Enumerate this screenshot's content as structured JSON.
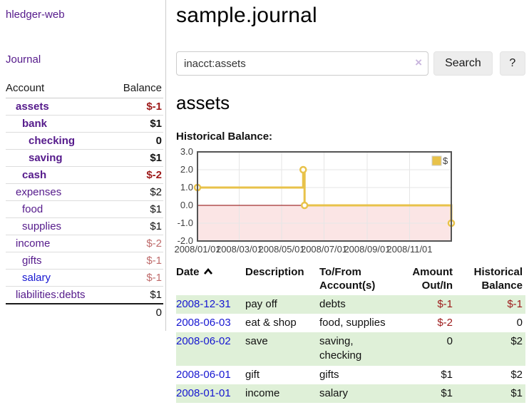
{
  "app": {
    "brand": "hledger-web",
    "nav_journal": "Journal"
  },
  "sidebar": {
    "columns": {
      "account": "Account",
      "balance": "Balance"
    },
    "accounts": [
      {
        "name": "assets",
        "balance": "$-1",
        "level": 1,
        "bold": true,
        "name_class": "",
        "balance_class": "neg-strong"
      },
      {
        "name": "bank",
        "balance": "$1",
        "level": 2,
        "bold": true,
        "name_class": "",
        "balance_class": ""
      },
      {
        "name": "checking",
        "balance": "0",
        "level": 3,
        "bold": true,
        "name_class": "",
        "balance_class": ""
      },
      {
        "name": "saving",
        "balance": "$1",
        "level": 3,
        "bold": true,
        "name_class": "",
        "balance_class": ""
      },
      {
        "name": "cash",
        "balance": "$-2",
        "level": 2,
        "bold": true,
        "name_class": "",
        "balance_class": "neg-strong"
      },
      {
        "name": "expenses",
        "balance": "$2",
        "level": 1,
        "bold": false,
        "name_class": "",
        "balance_class": ""
      },
      {
        "name": "food",
        "balance": "$1",
        "level": 2,
        "bold": false,
        "name_class": "",
        "balance_class": ""
      },
      {
        "name": "supplies",
        "balance": "$1",
        "level": 2,
        "bold": false,
        "name_class": "",
        "balance_class": ""
      },
      {
        "name": "income",
        "balance": "$-2",
        "level": 1,
        "bold": false,
        "name_class": "",
        "balance_class": "neg-soft"
      },
      {
        "name": "gifts",
        "balance": "$-1",
        "level": 2,
        "bold": false,
        "name_class": "",
        "balance_class": "neg-soft"
      },
      {
        "name": "salary",
        "balance": "$-1",
        "level": 2,
        "bold": false,
        "name_class": "blue",
        "balance_class": "neg-soft"
      },
      {
        "name": "liabilities:debts",
        "balance": "$1",
        "level": 1,
        "bold": false,
        "name_class": "",
        "balance_class": ""
      }
    ],
    "total": "0"
  },
  "header": {
    "title": "sample.journal"
  },
  "search": {
    "value": "inacct:assets",
    "clear_icon": "×",
    "button_label": "Search",
    "help_label": "?"
  },
  "main": {
    "account_heading": "assets",
    "chart_label": "Historical Balance:"
  },
  "chart_data": {
    "type": "line",
    "title": "Historical Balance:",
    "style": "step",
    "x_range": [
      "2008-01-01",
      "2008-12-31"
    ],
    "ylim": [
      -2,
      3
    ],
    "yticks": [
      3.0,
      2.0,
      1.0,
      0.0,
      -1.0,
      -2.0
    ],
    "xtick_labels": [
      "2008/01/01",
      "2008/03/01",
      "2008/05/01",
      "2008/07/01",
      "2008/09/01",
      "2008/11/01"
    ],
    "grid": true,
    "legend_position": "top-right",
    "series": [
      {
        "name": "$",
        "color": "#e8c24a",
        "points": [
          {
            "date": "2008-01-01",
            "value": 1
          },
          {
            "date": "2008-06-01",
            "value": 2
          },
          {
            "date": "2008-06-03",
            "value": 0
          },
          {
            "date": "2008-12-31",
            "value": -1
          }
        ]
      }
    ],
    "negative_region_fill": "#fbe5e5",
    "zero_line_color": "#8b0000",
    "plot_border_color": "#545454",
    "gridline_color": "#e6e6e6"
  },
  "register": {
    "headers": {
      "date": "Date",
      "description": "Description",
      "accounts": "To/From Account(s)",
      "amount": "Amount Out/In",
      "balance": "Historical Balance"
    },
    "rows": [
      {
        "date": "2008-12-31",
        "description": "pay off",
        "accounts": "debts",
        "amount": "$-1",
        "balance": "$-1"
      },
      {
        "date": "2008-06-03",
        "description": "eat & shop",
        "accounts": "food, supplies",
        "amount": "$-2",
        "balance": "0"
      },
      {
        "date": "2008-06-02",
        "description": "save",
        "accounts": "saving, checking",
        "amount": "0",
        "balance": "$2"
      },
      {
        "date": "2008-06-01",
        "description": "gift",
        "accounts": "gifts",
        "amount": "$1",
        "balance": "$2"
      },
      {
        "date": "2008-01-01",
        "description": "income",
        "accounts": "salary",
        "amount": "$1",
        "balance": "$1"
      }
    ]
  }
}
